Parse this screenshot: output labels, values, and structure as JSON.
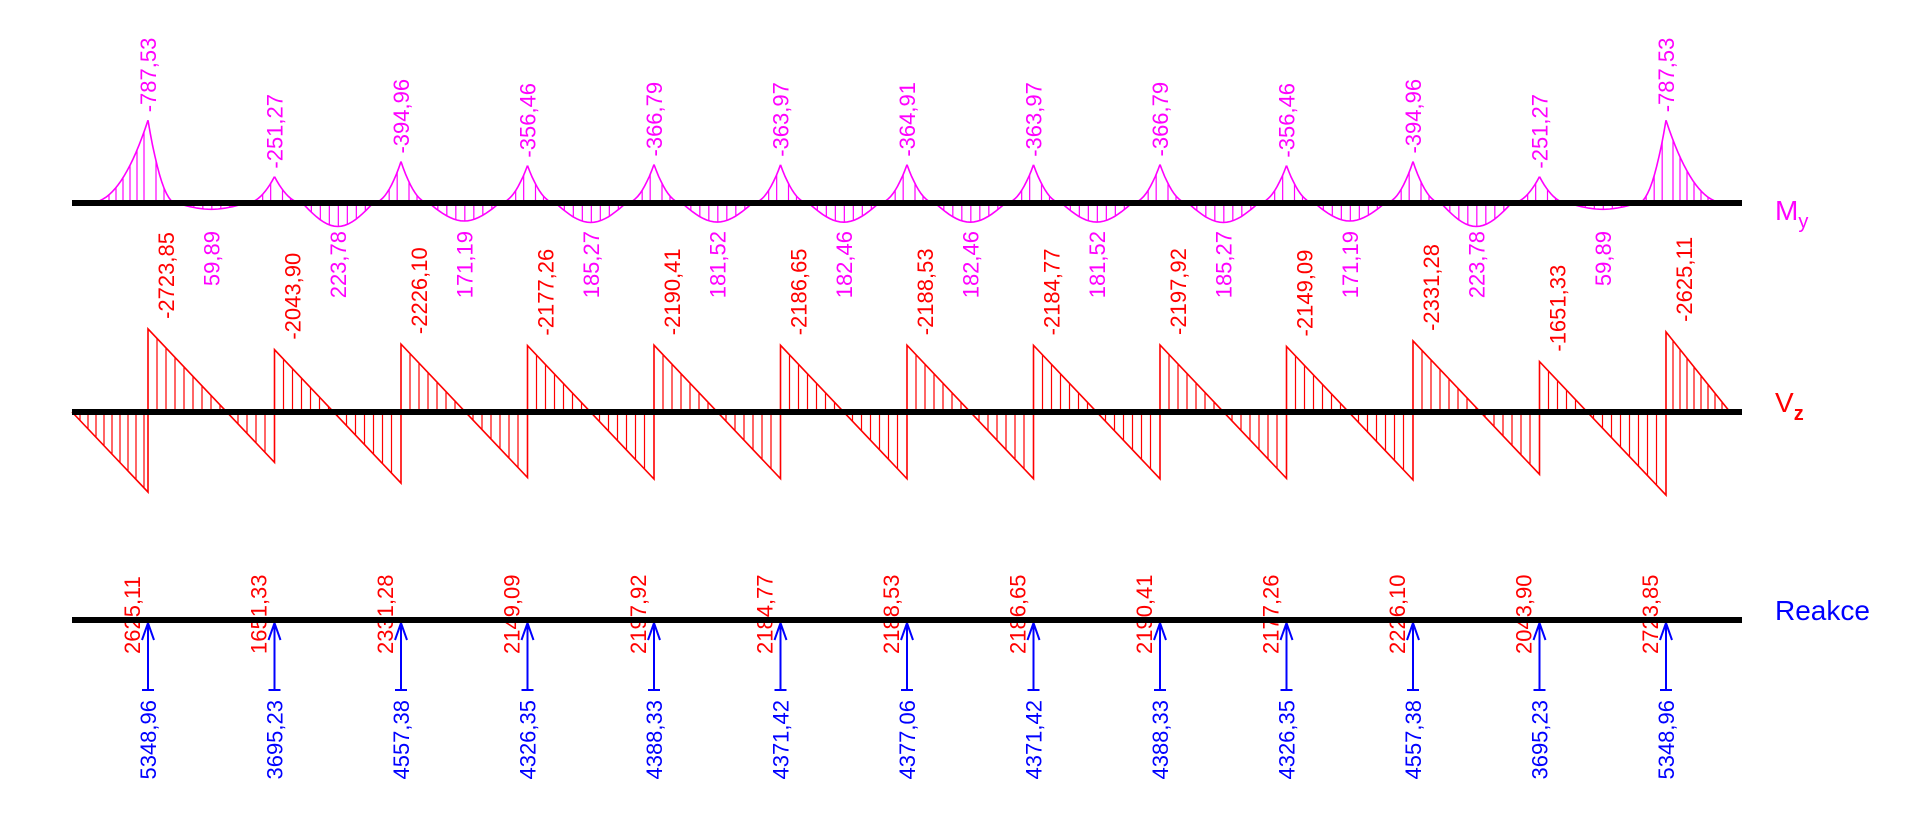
{
  "colors": {
    "moment": "#ff00ff",
    "shear": "#ff0000",
    "reaction": "#0000ff",
    "beam": "#000000",
    "background": "#ffffff"
  },
  "labels": {
    "moment": "M",
    "moment_sub": "y",
    "shear": "V",
    "shear_sub": "z",
    "reaction": "Reakce"
  },
  "chart_data": {
    "type": "beam-diagram",
    "supports": 13,
    "moment": {
      "support_values": [
        "-787,53",
        "-251,27",
        "-394,96",
        "-356,46",
        "-366,79",
        "-363,97",
        "-364,91",
        "-363,97",
        "-366,79",
        "-356,46",
        "-394,96",
        "-251,27",
        "-787,53"
      ],
      "span_values": [
        "59,89",
        "223,78",
        "171,19",
        "185,27",
        "181,52",
        "182,46",
        "182,46",
        "181,52",
        "185,27",
        "171,19",
        "223,78",
        "59,89"
      ],
      "support_magnitudes": [
        787.53,
        251.27,
        394.96,
        356.46,
        366.79,
        363.97,
        364.91,
        363.97,
        366.79,
        356.46,
        394.96,
        251.27,
        787.53
      ],
      "span_magnitudes": [
        59.89,
        223.78,
        171.19,
        185.27,
        181.52,
        182.46,
        182.46,
        181.52,
        185.27,
        171.19,
        223.78,
        59.89
      ]
    },
    "shear": {
      "right_of_support": [
        "-2723,85",
        "-2043,90",
        "-2226,10",
        "-2177,26",
        "-2190,41",
        "-2186,65",
        "-2188,53",
        "-2184,77",
        "-2197,92",
        "-2149,09",
        "-2331,28",
        "-1651,33",
        "-2625,11"
      ],
      "left_of_support": [
        "2625,11",
        "1651,33",
        "2331,28",
        "2149,09",
        "2197,92",
        "2184,77",
        "2188,53",
        "2186,65",
        "2190,41",
        "2177,26",
        "2226,10",
        "2043,90",
        "2723,85"
      ],
      "right_magnitudes": [
        2723.85,
        2043.9,
        2226.1,
        2177.26,
        2190.41,
        2186.65,
        2188.53,
        2184.77,
        2197.92,
        2149.09,
        2331.28,
        1651.33,
        2625.11
      ],
      "left_magnitudes": [
        2625.11,
        1651.33,
        2331.28,
        2149.09,
        2197.92,
        2184.77,
        2188.53,
        2186.65,
        2190.41,
        2177.26,
        2226.1,
        2043.9,
        2723.85
      ]
    },
    "reactions": {
      "values": [
        "5348,96",
        "3695,23",
        "4557,38",
        "4326,35",
        "4388,33",
        "4371,42",
        "4377,06",
        "4371,42",
        "4388,33",
        "4326,35",
        "4557,38",
        "3695,23",
        "5348,96"
      ]
    }
  }
}
